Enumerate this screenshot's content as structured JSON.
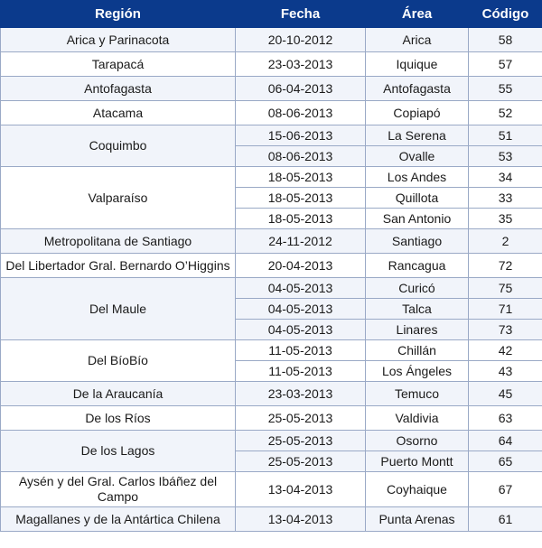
{
  "headers": [
    "Región",
    "Fecha",
    "Área",
    "Código"
  ],
  "groups": [
    {
      "region": "Arica y Parinacota",
      "rows": [
        {
          "fecha": "20-10-2012",
          "area": "Arica",
          "codigo": "58"
        }
      ]
    },
    {
      "region": "Tarapacá",
      "rows": [
        {
          "fecha": "23-03-2013",
          "area": "Iquique",
          "codigo": "57"
        }
      ]
    },
    {
      "region": "Antofagasta",
      "rows": [
        {
          "fecha": "06-04-2013",
          "area": "Antofagasta",
          "codigo": "55"
        }
      ]
    },
    {
      "region": "Atacama",
      "rows": [
        {
          "fecha": "08-06-2013",
          "area": "Copiapó",
          "codigo": "52"
        }
      ]
    },
    {
      "region": "Coquimbo",
      "rows": [
        {
          "fecha": "15-06-2013",
          "area": "La Serena",
          "codigo": "51"
        },
        {
          "fecha": "08-06-2013",
          "area": "Ovalle",
          "codigo": "53"
        }
      ]
    },
    {
      "region": "Valparaíso",
      "rows": [
        {
          "fecha": "18-05-2013",
          "area": "Los Andes",
          "codigo": "34"
        },
        {
          "fecha": "18-05-2013",
          "area": "Quillota",
          "codigo": "33"
        },
        {
          "fecha": "18-05-2013",
          "area": "San Antonio",
          "codigo": "35"
        }
      ]
    },
    {
      "region": "Metropolitana de Santiago",
      "rows": [
        {
          "fecha": "24-11-2012",
          "area": "Santiago",
          "codigo": "2"
        }
      ]
    },
    {
      "region": "Del Libertador Gral. Bernardo O’Higgins",
      "rows": [
        {
          "fecha": "20-04-2013",
          "area": "Rancagua",
          "codigo": "72"
        }
      ]
    },
    {
      "region": "Del Maule",
      "rows": [
        {
          "fecha": "04-05-2013",
          "area": "Curicó",
          "codigo": "75"
        },
        {
          "fecha": "04-05-2013",
          "area": "Talca",
          "codigo": "71"
        },
        {
          "fecha": "04-05-2013",
          "area": "Linares",
          "codigo": "73"
        }
      ]
    },
    {
      "region": "Del BíoBío",
      "rows": [
        {
          "fecha": "11-05-2013",
          "area": "Chillán",
          "codigo": "42"
        },
        {
          "fecha": "11-05-2013",
          "area": "Los Ángeles",
          "codigo": "43"
        }
      ]
    },
    {
      "region": "De la Araucanía",
      "rows": [
        {
          "fecha": "23-03-2013",
          "area": "Temuco",
          "codigo": "45"
        }
      ]
    },
    {
      "region": "De los Ríos",
      "rows": [
        {
          "fecha": "25-05-2013",
          "area": "Valdivia",
          "codigo": "63"
        }
      ]
    },
    {
      "region": "De los Lagos",
      "rows": [
        {
          "fecha": "25-05-2013",
          "area": "Osorno",
          "codigo": "64"
        },
        {
          "fecha": "25-05-2013",
          "area": "Puerto Montt",
          "codigo": "65"
        }
      ]
    },
    {
      "region": "Aysén y del Gral. Carlos Ibáñez del Campo",
      "rows": [
        {
          "fecha": "13-04-2013",
          "area": "Coyhaique",
          "codigo": "67"
        }
      ]
    },
    {
      "region": "Magallanes y de la Antártica Chilena",
      "rows": [
        {
          "fecha": "13-04-2013",
          "area": "Punta Arenas",
          "codigo": "61"
        }
      ]
    }
  ],
  "colors": {
    "header_bg": "#0b3a8c",
    "header_text": "#ffffff",
    "border": "#9aa9c6",
    "stripe": "#f1f4fa"
  }
}
